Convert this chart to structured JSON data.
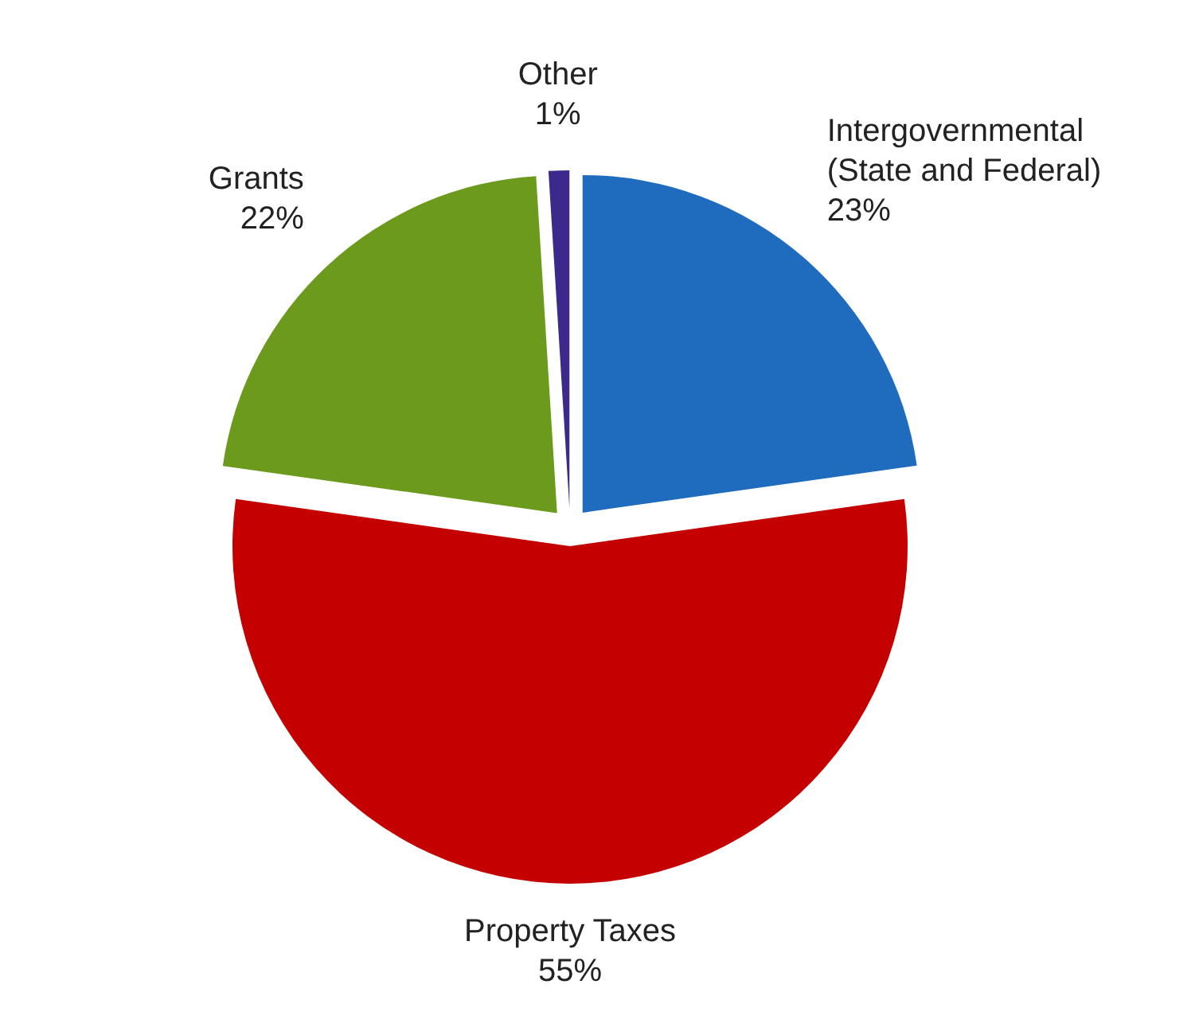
{
  "chart_data": {
    "type": "pie",
    "categories": [
      "Intergovernmental (State and Federal)",
      "Property Taxes",
      "Grants",
      "Other"
    ],
    "values": [
      23,
      55,
      22,
      1
    ],
    "value_labels": [
      "23%",
      "55%",
      "22%",
      "1%"
    ],
    "colors": [
      "#1f6cbf",
      "#c40000",
      "#6b9a1c",
      "#3b2a8c"
    ]
  }
}
